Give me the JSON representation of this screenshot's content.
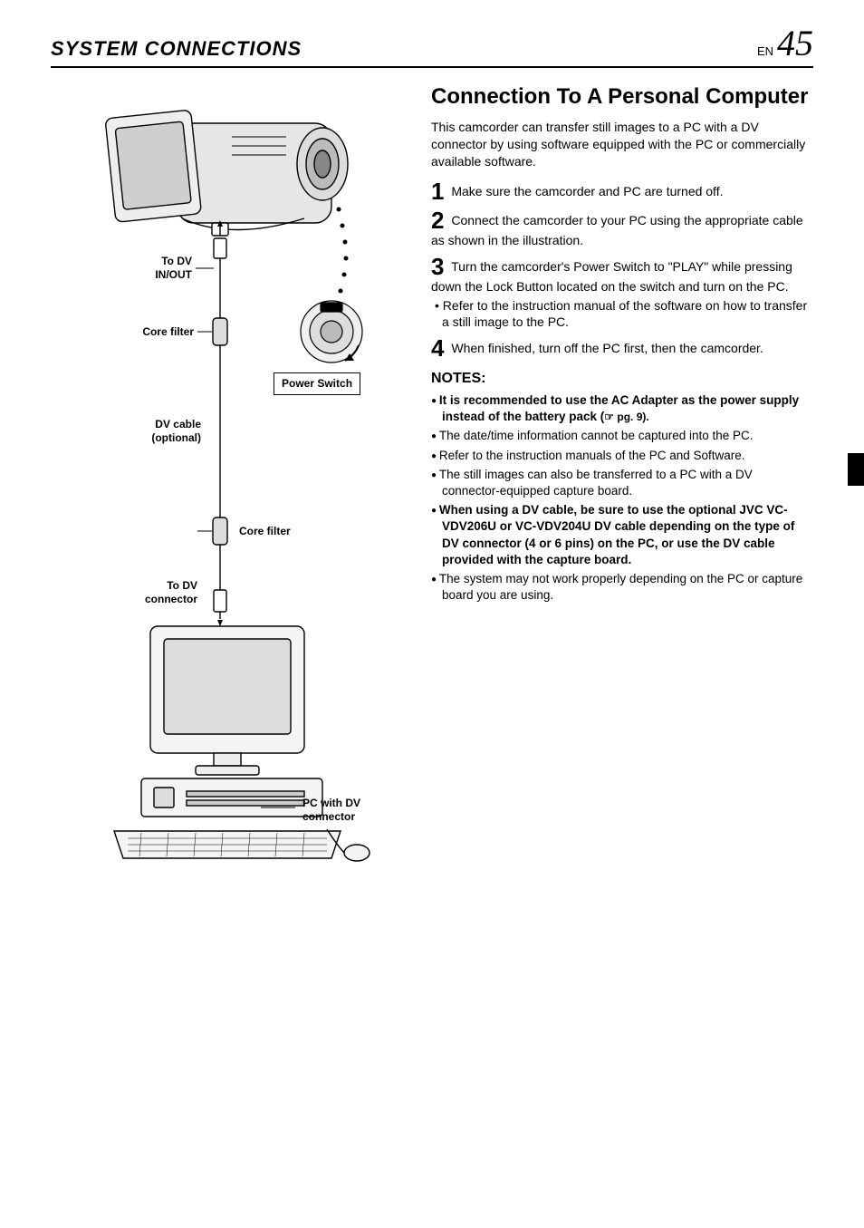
{
  "header": {
    "title": "SYSTEM  CONNECTIONS",
    "lang": "EN",
    "page_number": "45"
  },
  "right": {
    "subheading": "Connection To A Personal Computer",
    "intro": "This camcorder can transfer still images to a PC with a DV connector by using software equipped with the PC or commercially available software.",
    "steps": [
      {
        "num": "1",
        "text": "Make sure the camcorder and PC are turned off."
      },
      {
        "num": "2",
        "text": "Connect the camcorder to your PC using the appropriate cable as shown in the illustration."
      },
      {
        "num": "3",
        "text": "Turn the camcorder's Power Switch to \"PLAY\" while pressing down the Lock Button located on the switch and turn on the PC.",
        "sub": "Refer to the instruction manual of the software on how to transfer a still image to the PC."
      },
      {
        "num": "4",
        "text": "When finished, turn off the PC first, then the camcorder."
      }
    ],
    "notes_heading": "NOTES:",
    "notes": [
      {
        "bold": true,
        "text": "It is recommended to use the AC Adapter as the power supply instead of the battery pack (",
        "ref": "☞ pg. 9).",
        "ref_after": ""
      },
      {
        "bold": false,
        "text": "The date/time information cannot be captured into the PC."
      },
      {
        "bold": false,
        "text": "Refer to the instruction manuals of the PC and Software."
      },
      {
        "bold": false,
        "text": "The still images can also be transferred to a PC with a DV connector-equipped capture board."
      },
      {
        "bold": true,
        "text": "When using a DV cable, be sure to use the optional JVC VC-VDV206U or VC-VDV204U DV cable depending on the type of DV connector (4 or 6 pins) on the PC, or use the DV cable provided with the capture board."
      },
      {
        "bold": false,
        "text": "The system may not work properly depending on the PC or capture board you are using."
      }
    ]
  },
  "diagram": {
    "labels": {
      "to_dv_inout": "To DV\nIN/OUT",
      "core_filter_top": "Core filter",
      "power_switch": "Power Switch",
      "dv_cable": "DV cable\n(optional)",
      "core_filter_bottom": "Core filter",
      "to_dv_connector": "To DV\nconnector",
      "pc_with_dv": "PC with DV\nconnector"
    },
    "style": {
      "stroke": "#000000",
      "fill_shade": "#d9d9d9",
      "background": "#ffffff",
      "label_fontsize": 12,
      "label_fontweight": "bold"
    }
  }
}
